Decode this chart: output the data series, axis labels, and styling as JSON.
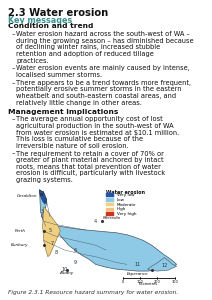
{
  "title": "2.3 Water erosion",
  "key_messages_label": "Key messages",
  "section1_title": "Condition and trend",
  "bullet1": "Water erosion hazard across the south-west of WA – during the growing season – has diminished because of declining winter rains, increased stubble retention and adoption of reduced tillage practices.",
  "bullet2": "Water erosion events are mainly caused by intense, localised summer storms.",
  "bullet3": "There appears to be a trend towards more frequent, potentially erosive summer storms in the eastern wheatbelt and south-eastern coastal areas, and relatively little change in other areas.",
  "section2_title": "Management implications",
  "bullet4": "The average annual opportunity cost of lost agricultural production in the south-west of WA from water erosion is estimated at $10.1 million. This loss is cumulative because of the irreversible nature of soil erosion.",
  "bullet5": "The requirement to retain a cover of 70% or greater of plant material anchored by intact roots, means that total prevention of water erosion is difficult, particularly with livestock grazing systems.",
  "legend_title": "Water erosion",
  "legend_items": [
    "Very low",
    "Low",
    "Moderate",
    "High",
    "Very high"
  ],
  "legend_colors": [
    "#2255aa",
    "#8ecae6",
    "#f0d080",
    "#f5c07a",
    "#cc3322"
  ],
  "figure_caption": "Figure 2.3.1 Resource hazard summary for water erosion.",
  "title_color": "#111111",
  "key_color": "#3a9090",
  "bg_color": "#ffffff",
  "scale_bar": "Kilometres",
  "scale_values": [
    "0",
    "100",
    "200",
    "300"
  ],
  "region_numbers": [
    "1",
    "2",
    "3",
    "4",
    "5",
    "6",
    "7",
    "8",
    "9",
    "10",
    "11",
    "12"
  ],
  "place_names": [
    "Geraldton",
    "Perth",
    "Bunbury",
    "Albany",
    "Esperance",
    "Merredin"
  ]
}
